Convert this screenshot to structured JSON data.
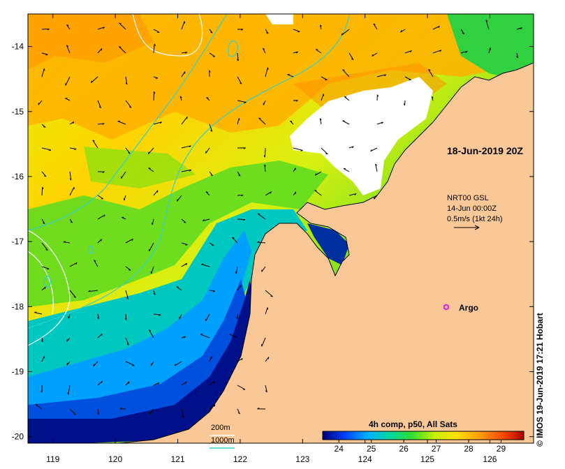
{
  "map": {
    "timestamp": "18-Jun-2019 20Z",
    "credit": "© IMOS 19-Jun-2019 17:21 Hobart",
    "currents": {
      "line1": "NRT00 GSL",
      "line2": "14-Jun 00:00Z",
      "scale_label": "0.5m/s (1kt 24h)"
    },
    "argo": {
      "label": "Argo",
      "marker_color": "#e020e0"
    },
    "isobaths": {
      "depth_200": "200m",
      "depth_1000": "1000m",
      "color_200": "#ffffff",
      "color_1000": "#30d0d0"
    },
    "colorbar": {
      "title": "4h comp, p50, All Sats",
      "ticks": [
        "24",
        "25",
        "26",
        "27",
        "28",
        "29"
      ],
      "min": 23.5,
      "max": 29.7,
      "colors": [
        "#00007a",
        "#0040ff",
        "#00b0ff",
        "#00d8a0",
        "#30e030",
        "#c8f000",
        "#ffe000",
        "#ffa000",
        "#ff5000",
        "#b00000"
      ]
    },
    "axes": {
      "longitudes": [
        "119",
        "120",
        "121",
        "122",
        "123",
        "124",
        "125",
        "126"
      ],
      "latitudes": [
        "-14",
        "-15",
        "-16",
        "-17",
        "-18",
        "-19",
        "-20"
      ],
      "lon_range": [
        118.6,
        126.7
      ],
      "lat_range": [
        -20.1,
        -13.5
      ]
    },
    "land_color": "#fac896",
    "cloud_color": "#ffffff"
  }
}
